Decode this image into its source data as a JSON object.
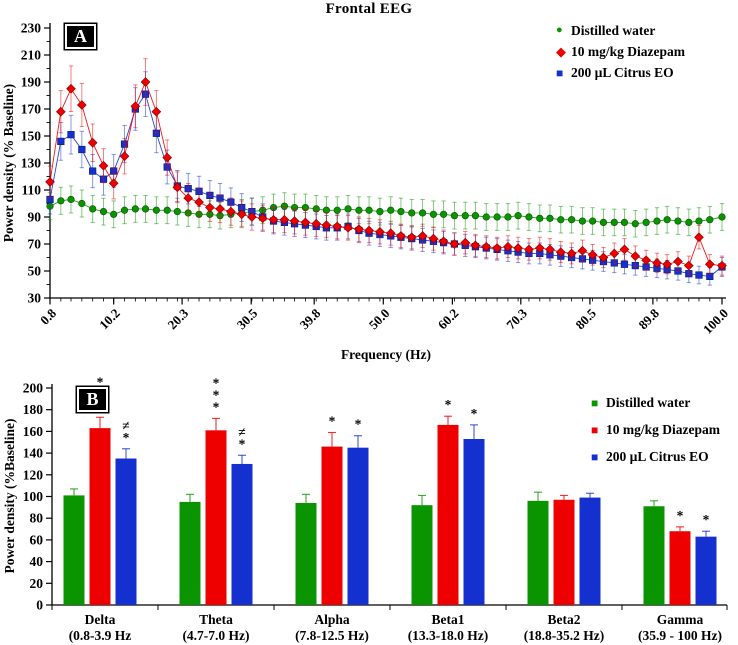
{
  "figure": {
    "title": "Frontal EEG",
    "panel_a_label": "A",
    "panel_b_label": "B"
  },
  "colors": {
    "water": "#0a9400",
    "diazepam": "#ee0000",
    "citrus": "#1430cf"
  },
  "legend": {
    "items": [
      {
        "label": "Distilled water"
      },
      {
        "label": "10 mg/kg Diazepam"
      },
      {
        "label": "200 µL Citrus EO"
      }
    ]
  },
  "chart_data": [
    {
      "type": "line",
      "title": "Frontal EEG",
      "xlabel": "Frequency (Hz)",
      "ylabel": "Power density (% Baseline)",
      "xlim": [
        0.8,
        100
      ],
      "ylim": [
        30,
        230
      ],
      "ytick_step": 20,
      "grid": false,
      "legend_position": "top-right",
      "xtick_labels": [
        "0.8",
        "10.2",
        "20.3",
        "30.5",
        "39.8",
        "50.0",
        "60.2",
        "70.3",
        "80.5",
        "89.8",
        "100.0"
      ],
      "x": [
        0.8,
        2.4,
        3.9,
        5.5,
        7.1,
        8.7,
        10.2,
        11.8,
        13.4,
        14.9,
        16.5,
        18.1,
        19.6,
        21.2,
        22.8,
        24.4,
        25.9,
        27.5,
        29.1,
        30.6,
        32.2,
        33.8,
        35.4,
        36.9,
        38.5,
        40.1,
        41.6,
        43.2,
        44.8,
        46.4,
        47.9,
        49.5,
        51.1,
        52.6,
        54.2,
        55.8,
        57.4,
        58.9,
        60.5,
        62.1,
        63.6,
        65.2,
        66.8,
        68.4,
        69.9,
        71.5,
        73.1,
        74.6,
        76.2,
        77.8,
        79.4,
        80.9,
        82.5,
        84.1,
        85.6,
        87.2,
        88.8,
        90.4,
        91.9,
        93.5,
        95.1,
        96.6,
        98.2,
        100.0
      ],
      "series": [
        {
          "name": "Distilled water",
          "color_key": "water",
          "marker": "circle",
          "err_base": 9,
          "err_factor": 0.01,
          "values": [
            98,
            102,
            103,
            100,
            96,
            94,
            92,
            95,
            96,
            96,
            95,
            95,
            94,
            93,
            92,
            92,
            91,
            92,
            93,
            94,
            95,
            97,
            98,
            97,
            97,
            96,
            95,
            95,
            96,
            95,
            95,
            94,
            95,
            94,
            93,
            93,
            92,
            92,
            91,
            91,
            91,
            90,
            90,
            90,
            91,
            90,
            89,
            89,
            88,
            88,
            87,
            87,
            86,
            86,
            86,
            85,
            86,
            87,
            88,
            87,
            86,
            87,
            88,
            90
          ]
        },
        {
          "name": "10 mg/kg Diazepam",
          "color_key": "diazepam",
          "marker": "diamond",
          "err_base": 3,
          "err_factor": 0.075,
          "values": [
            116,
            168,
            185,
            173,
            145,
            128,
            115,
            135,
            172,
            190,
            168,
            134,
            112,
            104,
            101,
            97,
            96,
            94,
            92,
            90,
            89,
            88,
            88,
            87,
            86,
            85,
            84,
            83,
            82,
            81,
            80,
            79,
            78,
            76,
            75,
            76,
            74,
            72,
            70,
            71,
            69,
            68,
            67,
            68,
            67,
            66,
            67,
            66,
            64,
            63,
            65,
            62,
            60,
            63,
            66,
            61,
            58,
            56,
            55,
            57,
            54,
            75,
            55,
            54
          ]
        },
        {
          "name": "200 µL Citrus EO",
          "color_key": "citrus",
          "marker": "square",
          "err_base": 3,
          "err_factor": 0.075,
          "values": [
            103,
            146,
            151,
            140,
            124,
            118,
            124,
            144,
            170,
            181,
            152,
            127,
            113,
            111,
            109,
            106,
            104,
            101,
            97,
            94,
            90,
            87,
            86,
            85,
            84,
            83,
            82,
            82,
            83,
            80,
            78,
            77,
            76,
            75,
            74,
            73,
            72,
            71,
            70,
            69,
            68,
            67,
            66,
            65,
            64,
            63,
            63,
            62,
            61,
            60,
            59,
            58,
            57,
            56,
            55,
            54,
            53,
            52,
            51,
            50,
            48,
            47,
            46,
            53
          ]
        }
      ]
    },
    {
      "type": "bar",
      "ylabel": "Power density (%Baseline)",
      "ylim": [
        0,
        200
      ],
      "ytick_step": 20,
      "grid": false,
      "legend_position": "top-right",
      "categories": [
        {
          "line1": "Delta",
          "line2": "(0.8-3.9 Hz"
        },
        {
          "line1": "Theta",
          "line2": "(4.7-7.0 Hz)"
        },
        {
          "line1": "Alpha",
          "line2": "(7.8-12.5 Hz)"
        },
        {
          "line1": "Beta1",
          "line2": "(13.3-18.0 Hz)"
        },
        {
          "line1": "Beta2",
          "line2": "(18.8-35.2 Hz)"
        },
        {
          "line1": "Gamma",
          "line2": "(35.9 - 100 Hz)"
        }
      ],
      "series": [
        {
          "name": "Distilled water",
          "color_key": "water",
          "values": [
            101,
            95,
            94,
            92,
            96,
            91
          ],
          "errors": [
            6,
            7,
            8,
            9,
            8,
            5
          ],
          "sig": [
            [],
            [],
            [],
            [],
            [],
            []
          ]
        },
        {
          "name": "10 mg/kg Diazepam",
          "color_key": "diazepam",
          "values": [
            163,
            161,
            146,
            166,
            97,
            68
          ],
          "errors": [
            10,
            11,
            13,
            8,
            4,
            4
          ],
          "sig": [
            [
              "*",
              "*",
              "*"
            ],
            [
              "*",
              "*",
              "*"
            ],
            [
              "*"
            ],
            [
              "*"
            ],
            [],
            [
              "*"
            ]
          ]
        },
        {
          "name": "200 µL Citrus EO",
          "color_key": "citrus",
          "values": [
            135,
            130,
            145,
            153,
            99,
            63
          ],
          "errors": [
            9,
            8,
            11,
            13,
            4,
            5
          ],
          "sig": [
            [
              "≠",
              "*"
            ],
            [
              "≠",
              "*"
            ],
            [
              "*"
            ],
            [
              "*"
            ],
            [],
            [
              "*"
            ]
          ]
        }
      ]
    }
  ]
}
